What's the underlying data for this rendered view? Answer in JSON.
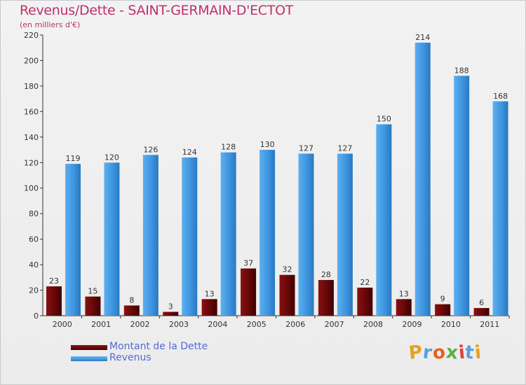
{
  "chart_data": {
    "type": "bar",
    "title": "Revenus/Dette - SAINT-GERMAIN-D'ECTOT",
    "subtitle": "(en milliers d'€)",
    "categories": [
      "2000",
      "2001",
      "2002",
      "2003",
      "2004",
      "2005",
      "2006",
      "2007",
      "2008",
      "2009",
      "2010",
      "2011"
    ],
    "series": [
      {
        "name": "Montant de la Dette",
        "color": "#7a0c0c",
        "values": [
          23,
          15,
          8,
          3,
          13,
          37,
          32,
          28,
          22,
          13,
          9,
          6
        ]
      },
      {
        "name": "Revenus",
        "color": "#4aa0e6",
        "values": [
          119,
          120,
          126,
          124,
          128,
          130,
          127,
          127,
          150,
          214,
          188,
          168
        ]
      }
    ],
    "ylim": [
      0,
      220
    ],
    "yticks": [
      0,
      20,
      40,
      60,
      80,
      100,
      120,
      140,
      160,
      180,
      200,
      220
    ],
    "grid": false,
    "legend_position": "bottom-left",
    "xlabel": "",
    "ylabel": ""
  },
  "logo": {
    "text": "Proxiti",
    "colors": [
      "#e8a020",
      "#5aa0e0",
      "#e86020",
      "#5ab040",
      "#e04040",
      "#5aa0e0",
      "#e8a020"
    ]
  }
}
